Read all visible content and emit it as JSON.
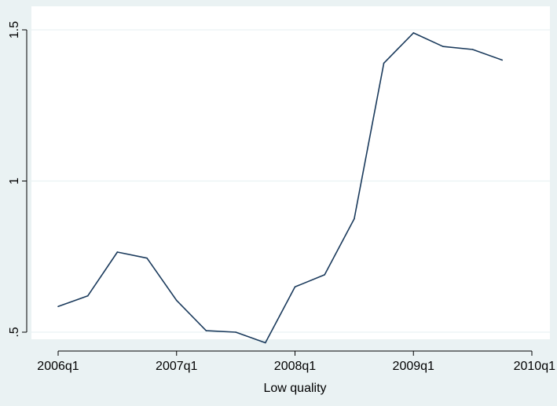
{
  "chart_data": {
    "type": "line",
    "title": "",
    "xlabel": "Low quality",
    "ylabel": "",
    "xlim": [
      "2006q1",
      "2010q1"
    ],
    "ylim": [
      0.5,
      1.5
    ],
    "x_ticks": [
      "2006q1",
      "2007q1",
      "2008q1",
      "2009q1",
      "2010q1"
    ],
    "y_ticks": [
      {
        "value": 0.5,
        "label": ".5"
      },
      {
        "value": 1,
        "label": "1"
      },
      {
        "value": 1.5,
        "label": "1.5"
      }
    ],
    "grid": true,
    "legend": "none",
    "colors": {
      "background": "#eaf2f3",
      "plot_background": "#ffffff",
      "line": "#1a3a5c",
      "grid": "#eaf2f3",
      "axis": "#000000"
    },
    "series": [
      {
        "x": [
          "2006q1",
          "2006q2",
          "2006q3",
          "2006q4",
          "2007q1",
          "2007q2",
          "2007q3",
          "2007q4",
          "2008q1",
          "2008q2",
          "2008q3",
          "2008q4",
          "2009q1",
          "2009q2",
          "2009q3",
          "2009q4"
        ],
        "values": [
          0.585,
          0.62,
          0.765,
          0.745,
          0.605,
          0.505,
          0.5,
          0.465,
          0.65,
          0.69,
          0.875,
          1.39,
          1.49,
          1.445,
          1.435,
          1.4
        ]
      }
    ]
  }
}
